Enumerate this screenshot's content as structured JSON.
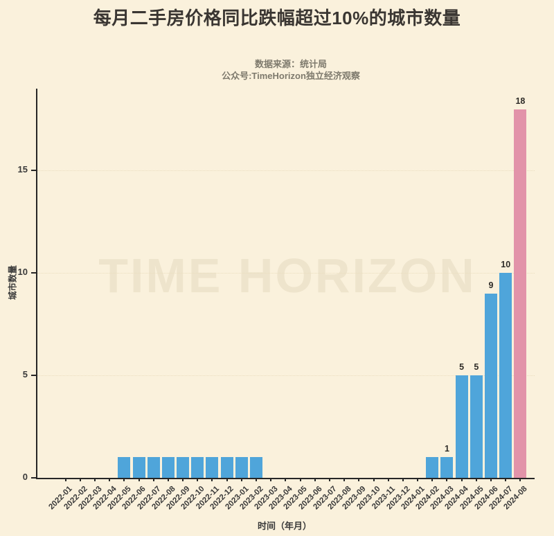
{
  "header": {
    "title": "每月二手房价格同比跌幅超过10%的城市数量",
    "source": "数据来源：统计局",
    "account": "公众号:TimeHorizon独立经济观察"
  },
  "watermark": "TIME HORIZON",
  "chart_data": {
    "type": "bar",
    "title": "每月二手房价格同比跌幅超过10%的城市数量",
    "xlabel": "时间（年月）",
    "ylabel": "城市数量",
    "ylim": [
      0,
      19
    ],
    "yticks": [
      0,
      5,
      10,
      15
    ],
    "grid": "horizontal-dotted",
    "legend": "none",
    "categories": [
      "2022-01",
      "2022-02",
      "2022-03",
      "2022-04",
      "2022-05",
      "2022-06",
      "2022-07",
      "2022-08",
      "2022-09",
      "2022-10",
      "2022-11",
      "2022-12",
      "2023-01",
      "2023-02",
      "2023-03",
      "2023-04",
      "2023-05",
      "2023-06",
      "2023-07",
      "2023-08",
      "2023-09",
      "2023-10",
      "2023-11",
      "2023-12",
      "2024-01",
      "2024-02",
      "2024-03",
      "2024-04",
      "2024-05",
      "2024-06",
      "2024-07",
      "2024-08"
    ],
    "values": [
      0,
      0,
      0,
      0,
      1,
      1,
      1,
      1,
      1,
      1,
      1,
      1,
      1,
      1,
      0,
      0,
      0,
      0,
      0,
      0,
      0,
      0,
      0,
      0,
      0,
      1,
      1,
      5,
      5,
      9,
      10,
      18
    ],
    "value_labels": [
      "",
      "",
      "",
      "",
      "",
      "",
      "",
      "",
      "",
      "",
      "",
      "",
      "",
      "",
      "",
      "",
      "",
      "",
      "",
      "",
      "",
      "",
      "",
      "",
      "",
      "",
      "1",
      "5",
      "5",
      "9",
      "10",
      "18"
    ],
    "bar_colors": {
      "default": "#4FA5DA",
      "highlight": "#E293A9"
    },
    "highlight_category": "2024-08"
  }
}
